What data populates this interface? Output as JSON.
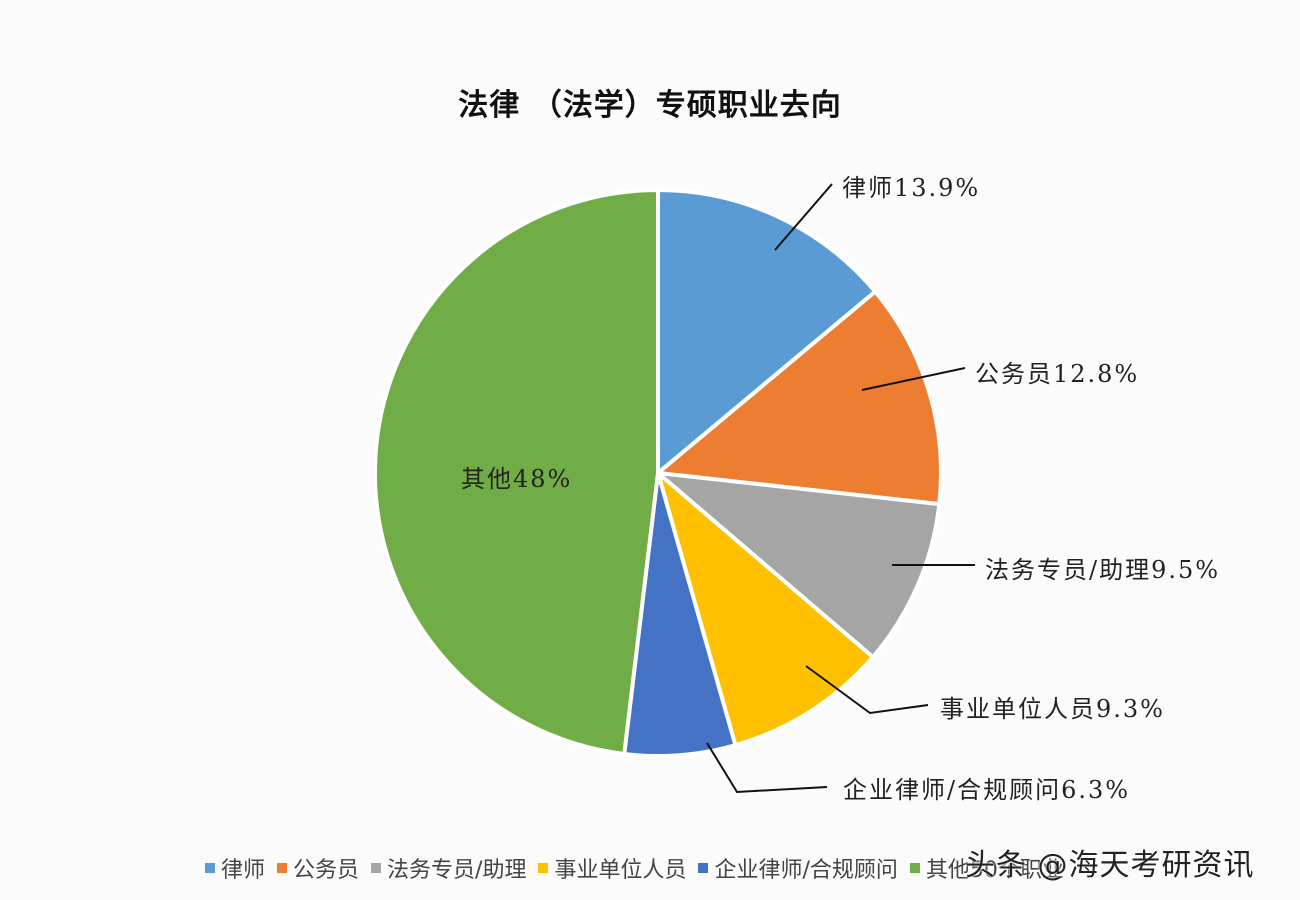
{
  "chart_data": {
    "type": "pie",
    "title": "法律（法学）专硕职业去向",
    "categories": [
      "律师",
      "公务员",
      "法务专员/助理",
      "事业单位人员",
      "企业律师/合规顾问",
      "其他50个职业"
    ],
    "values": [
      13.9,
      12.8,
      9.5,
      9.3,
      6.3,
      48
    ],
    "unit": "%",
    "colors": [
      "#5B9BD5",
      "#ED7D31",
      "#A5A5A5",
      "#FFC000",
      "#4472C4",
      "#70AD47"
    ],
    "start_angle_deg": 0,
    "direction": "clockwise",
    "legend_position": "bottom",
    "data_labels": [
      "律师13.9%",
      "公务员12.8%",
      "法务专员/助理9.5%",
      "事业单位人员9.3%",
      "企业律师/合规顾问6.3%",
      "其他48%"
    ]
  },
  "title": "法律 （法学）专硕职业去向",
  "labels": {
    "lawyer": "律师13.9%",
    "civil_servant": "公务员12.8%",
    "legal_specialist": "法务专员/助理9.5%",
    "institution_staff": "事业单位人员9.3%",
    "corporate_counsel": "企业律师/合规顾问6.3%",
    "other": "其他48%"
  },
  "legend": [
    {
      "label": "律师",
      "color": "#5B9BD5"
    },
    {
      "label": "公务员",
      "color": "#ED7D31"
    },
    {
      "label": "法务专员/助理",
      "color": "#A5A5A5"
    },
    {
      "label": "事业单位人员",
      "color": "#FFC000"
    },
    {
      "label": "企业律师/合规顾问",
      "color": "#4472C4"
    },
    {
      "label": "其他50个职业",
      "color": "#70AD47"
    }
  ],
  "watermark": "头条 @海天考研资讯"
}
